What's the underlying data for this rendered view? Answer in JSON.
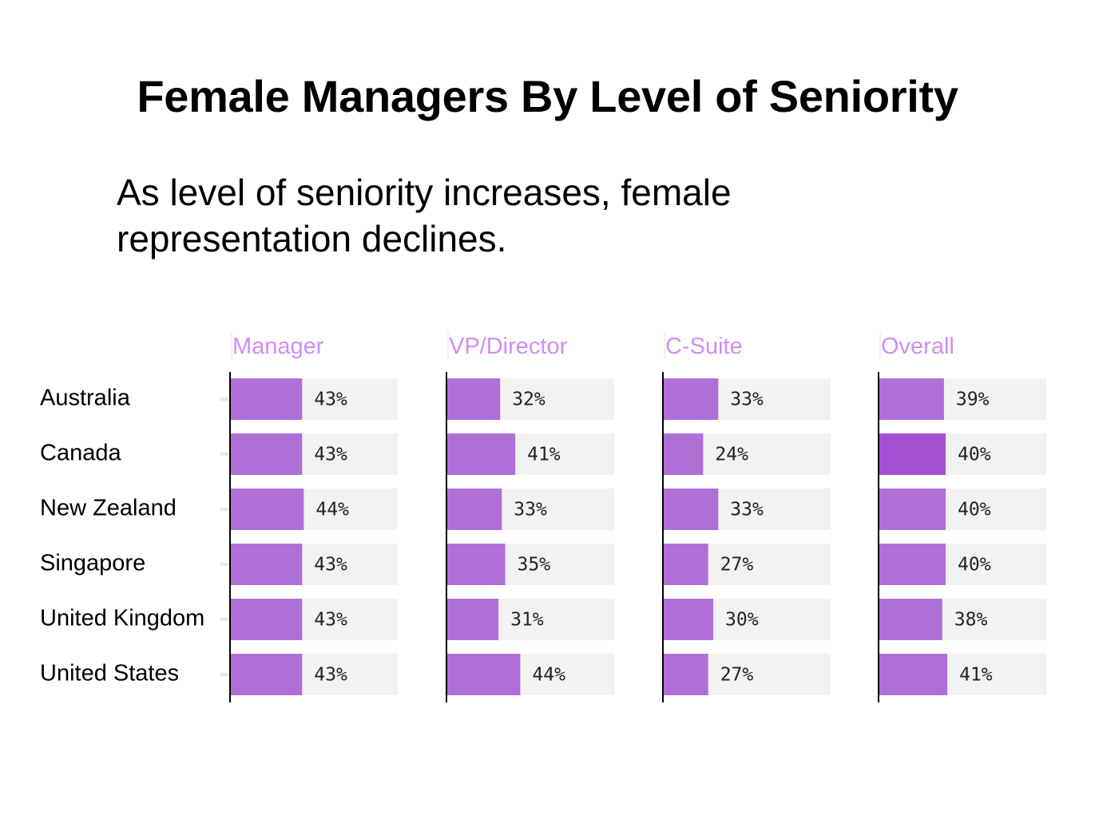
{
  "title": "Female Managers By Level of Seniority",
  "subtitle": "As level of seniority increases, female representation declines.",
  "colors": {
    "bar": "#b06fd6",
    "bar_highlight": "#a450d2",
    "track": "#f2f2f2",
    "panel_title": "#d08ef0",
    "axis": "#000000"
  },
  "chart_data": {
    "type": "bar",
    "orientation": "horizontal",
    "layout": "small-multiples",
    "categories": [
      "Australia",
      "Canada",
      "New Zealand",
      "Singapore",
      "United Kingdom",
      "United States"
    ],
    "xlim": [
      0,
      100
    ],
    "grid": false,
    "series": [
      {
        "name": "Manager",
        "values": [
          43,
          43,
          44,
          43,
          43,
          43
        ],
        "labels": [
          "43%",
          "43%",
          "44%",
          "43%",
          "43%",
          "43%"
        ]
      },
      {
        "name": "VP/Director",
        "values": [
          32,
          41,
          33,
          35,
          31,
          44
        ],
        "labels": [
          "32%",
          "41%",
          "33%",
          "35%",
          "31%",
          "44%"
        ]
      },
      {
        "name": "C-Suite",
        "values": [
          33,
          24,
          33,
          27,
          30,
          27
        ],
        "labels": [
          "33%",
          "24%",
          "33%",
          "27%",
          "30%",
          "27%"
        ]
      },
      {
        "name": "Overall",
        "values": [
          39,
          40,
          40,
          40,
          38,
          41
        ],
        "labels": [
          "39%",
          "40%",
          "40%",
          "40%",
          "38%",
          "41%"
        ],
        "highlight_index": 1
      }
    ]
  }
}
